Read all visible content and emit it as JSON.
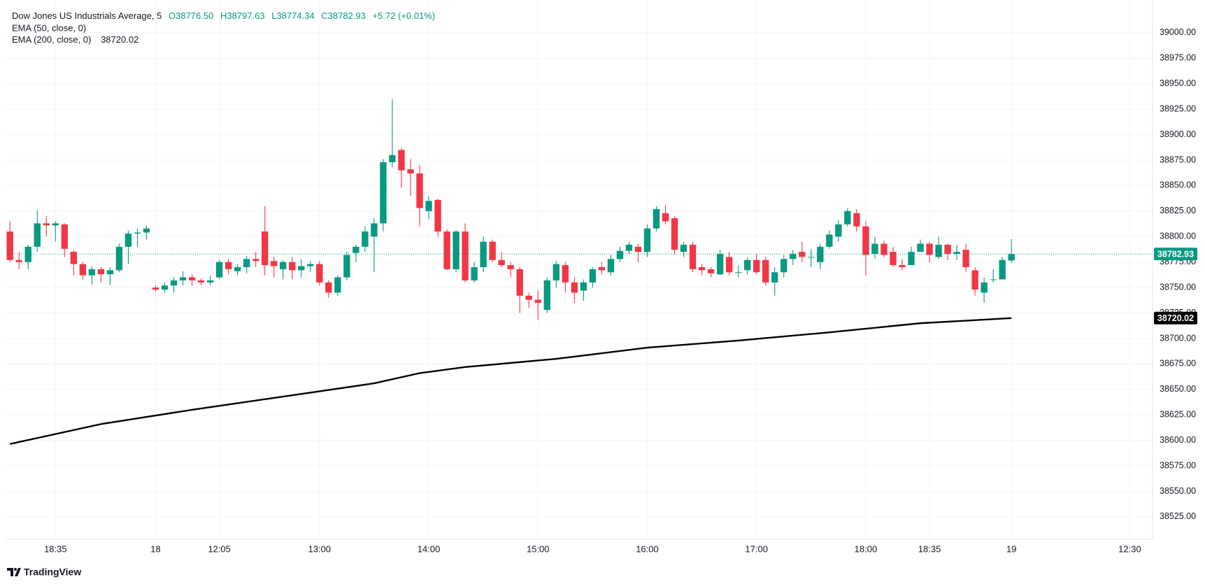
{
  "chart_data": {
    "type": "candlestick",
    "title": "Dow Jones US Industrials Average, 5",
    "ohlc_labels": [
      "O38776.50",
      "H38797.63",
      "L38774.34",
      "C38782.93"
    ],
    "change_label": "+5.72 (+0.01%)",
    "up_color": "#089981",
    "down_color": "#f23645",
    "last_label": "38782.93",
    "x": [
      0,
      1,
      2,
      3,
      4,
      5,
      6,
      7,
      8,
      9,
      10,
      11,
      12,
      13,
      14,
      15,
      16,
      17,
      18,
      19,
      20,
      21,
      22,
      23,
      24,
      25,
      26,
      27,
      28,
      29,
      30,
      31,
      32,
      33,
      34,
      35,
      36,
      37,
      38,
      39,
      40,
      41,
      42,
      43,
      44,
      45,
      46,
      47,
      48,
      49,
      50,
      51,
      52,
      53,
      54,
      55,
      56,
      57,
      58,
      59,
      60,
      61,
      62,
      63,
      64,
      65,
      66,
      67,
      68,
      69,
      70,
      71,
      72,
      73,
      74,
      75,
      76,
      77,
      78,
      79,
      80,
      81,
      82,
      83,
      84,
      85,
      86,
      87,
      88,
      89,
      90,
      91,
      92,
      93,
      94,
      95,
      96,
      97,
      98,
      99,
      100,
      101,
      102,
      103,
      104,
      105,
      106,
      107,
      108,
      109,
      110
    ],
    "open": [
      38805,
      38777,
      38775,
      38790,
      38813,
      38811,
      38812,
      38785,
      38773,
      38762,
      38768,
      38763,
      38767,
      38790,
      38803,
      38804,
      38750,
      38748,
      38752,
      38757,
      38760,
      38757,
      38755,
      38760,
      38775,
      38766,
      38770,
      38778,
      38805,
      38776,
      38768,
      38775,
      38767,
      38771,
      38773,
      38755,
      38745,
      38760,
      38784,
      38790,
      38800,
      38813,
      38873,
      38885,
      38866,
      38862,
      38825,
      38836,
      38805,
      38768,
      38805,
      38757,
      38770,
      38795,
      38777,
      38772,
      38768,
      38742,
      38738,
      38728,
      38757,
      38772,
      38755,
      38747,
      38755,
      38770,
      38765,
      38778,
      38786,
      38790,
      38785,
      38808,
      38823,
      38818,
      38785,
      38792,
      38770,
      38768,
      38763,
      38780,
      38765,
      38767,
      38777,
      38777,
      38755,
      38765,
      38778,
      38785,
      38780,
      38775,
      38790,
      38800,
      38812,
      38823,
      38810,
      38783,
      38793,
      38785,
      38772,
      38772,
      38785,
      38793,
      38780,
      38792,
      38783,
      38787,
      38767,
      38745,
      38758,
      38758,
      38776.5
    ],
    "high": [
      38815,
      38785,
      38792,
      38826,
      38820,
      38815,
      38813,
      38787,
      38775,
      38771,
      38770,
      38770,
      38793,
      38806,
      38808,
      38811,
      38752,
      38755,
      38760,
      38766,
      38763,
      38759,
      38762,
      38777,
      38778,
      38773,
      38781,
      38785,
      38830,
      38780,
      38777,
      38780,
      38778,
      38776,
      38776,
      38757,
      38762,
      38785,
      38792,
      38810,
      38818,
      38876,
      38935,
      38887,
      38876,
      38870,
      38840,
      38837,
      38807,
      38806,
      38813,
      38775,
      38800,
      38797,
      38785,
      38775,
      38770,
      38745,
      38747,
      38760,
      38776,
      38775,
      38760,
      38758,
      38770,
      38775,
      38782,
      38790,
      38795,
      38793,
      38812,
      38830,
      38831,
      38820,
      38795,
      38795,
      38773,
      38770,
      38787,
      38785,
      38772,
      38780,
      38783,
      38780,
      38770,
      38782,
      38787,
      38795,
      38788,
      38793,
      38806,
      38816,
      38828,
      38827,
      38815,
      38800,
      38796,
      38790,
      38778,
      38790,
      38797,
      38795,
      38800,
      38793,
      38792,
      38793,
      38770,
      38760,
      38768,
      38780,
      38797.63
    ],
    "low": [
      38775,
      38768,
      38768,
      38785,
      38800,
      38795,
      38780,
      38762,
      38758,
      38753,
      38755,
      38752,
      38765,
      38773,
      38790,
      38797,
      38746,
      38745,
      38745,
      38752,
      38752,
      38752,
      38752,
      38758,
      38763,
      38762,
      38764,
      38770,
      38762,
      38760,
      38758,
      38758,
      38760,
      38765,
      38752,
      38740,
      38742,
      38757,
      38775,
      38785,
      38765,
      38805,
      38868,
      38848,
      38840,
      38810,
      38817,
      38800,
      38767,
      38765,
      38755,
      38755,
      38765,
      38775,
      38770,
      38760,
      38725,
      38730,
      38718,
      38725,
      38750,
      38745,
      38735,
      38737,
      38750,
      38763,
      38762,
      38775,
      38783,
      38775,
      38780,
      38805,
      38812,
      38783,
      38780,
      38765,
      38762,
      38760,
      38762,
      38762,
      38760,
      38763,
      38763,
      38752,
      38742,
      38760,
      38772,
      38775,
      38770,
      38768,
      38788,
      38795,
      38810,
      38805,
      38762,
      38778,
      38780,
      38770,
      38767,
      38775,
      38787,
      38775,
      38778,
      38777,
      38777,
      38765,
      38742,
      38735,
      38755,
      38758,
      38774.34
    ],
    "close": [
      38777,
      38775,
      38790,
      38813,
      38811,
      38813,
      38788,
      38773,
      38762,
      38768,
      38763,
      38767,
      38790,
      38803,
      38804,
      38808,
      38748,
      38752,
      38757,
      38760,
      38757,
      38755,
      38757,
      38775,
      38768,
      38770,
      38778,
      38776,
      38772,
      38771,
      38775,
      38767,
      38771,
      38773,
      38755,
      38745,
      38760,
      38782,
      38790,
      38805,
      38813,
      38873,
      38880,
      38865,
      38862,
      38828,
      38835,
      38805,
      38768,
      38805,
      38757,
      38770,
      38795,
      38777,
      38772,
      38768,
      38742,
      38738,
      38735,
      38757,
      38773,
      38755,
      38745,
      38755,
      38768,
      38767,
      38778,
      38786,
      38792,
      38785,
      38808,
      38827,
      38815,
      38787,
      38792,
      38768,
      38767,
      38764,
      38783,
      38765,
      38765,
      38777,
      38765,
      38755,
      38765,
      38778,
      38783,
      38780,
      38780,
      38790,
      38802,
      38812,
      38825,
      38810,
      38782,
      38793,
      38782,
      38772,
      38770,
      38785,
      38793,
      38782,
      38792,
      38783,
      38785,
      38770,
      38748,
      38755,
      38758,
      38777,
      38782.93
    ],
    "indicators": [
      {
        "name": "EMA (50, close, 0)"
      },
      {
        "name": "EMA (200, close, 0)",
        "value_label": "38720.02",
        "color": "#000000",
        "x": [
          0,
          10,
          20,
          30,
          40,
          45,
          50,
          60,
          70,
          80,
          90,
          100,
          110
        ],
        "values": [
          38596.5,
          38616,
          38630,
          38643,
          38656,
          38666,
          38672,
          38680,
          38691,
          38698,
          38706,
          38715,
          38720.02
        ]
      }
    ],
    "xlim": [
      -0.4,
      125.5
    ],
    "xticks": [
      {
        "value": 5,
        "label": "18:35"
      },
      {
        "value": 16,
        "label": "18"
      },
      {
        "value": 23,
        "label": "12:05"
      },
      {
        "value": 34,
        "label": "13:00"
      },
      {
        "value": 46,
        "label": "14:00"
      },
      {
        "value": 58,
        "label": "15:00"
      },
      {
        "value": 70,
        "label": "16:00"
      },
      {
        "value": 82,
        "label": "17:00"
      },
      {
        "value": 94,
        "label": "18:00"
      },
      {
        "value": 101,
        "label": "18:35"
      },
      {
        "value": 110,
        "label": "19"
      },
      {
        "value": 123,
        "label": "12:30"
      }
    ],
    "ylim": [
      38503,
      39026
    ],
    "yticks": [
      {
        "value": 38525,
        "label": "38525.00"
      },
      {
        "value": 38550,
        "label": "38550.00"
      },
      {
        "value": 38575,
        "label": "38575.00"
      },
      {
        "value": 38600,
        "label": "38600.00"
      },
      {
        "value": 38625,
        "label": "38625.00"
      },
      {
        "value": 38650,
        "label": "38650.00"
      },
      {
        "value": 38675,
        "label": "38675.00"
      },
      {
        "value": 38700,
        "label": "38700.00"
      },
      {
        "value": 38725,
        "label": "38725.00"
      },
      {
        "value": 38750,
        "label": "38750.00"
      },
      {
        "value": 38775,
        "label": "38775.00"
      },
      {
        "value": 38800,
        "label": "38800.00"
      },
      {
        "value": 38825,
        "label": "38825.00"
      },
      {
        "value": 38850,
        "label": "38850.00"
      },
      {
        "value": 38875,
        "label": "38875.00"
      },
      {
        "value": 38900,
        "label": "38900.00"
      },
      {
        "value": 38925,
        "label": "38925.00"
      },
      {
        "value": 38950,
        "label": "38950.00"
      },
      {
        "value": 38975,
        "label": "38975.00"
      },
      {
        "value": 39000,
        "label": "39000.00"
      }
    ],
    "grid": true,
    "footer": "TradingView"
  }
}
